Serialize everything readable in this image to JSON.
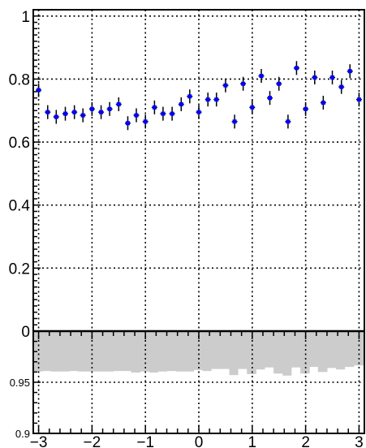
{
  "chart_data": [
    {
      "type": "scatter",
      "title": "",
      "xlabel": "",
      "ylabel": "",
      "xlim": [
        -3.1,
        3.1
      ],
      "ylim": [
        0,
        1.02
      ],
      "grid": true,
      "marker_color": "#0000ff",
      "x_ticks": [
        {
          "value": -3,
          "label": "−3"
        },
        {
          "value": -2,
          "label": "−2"
        },
        {
          "value": -1,
          "label": "−1"
        },
        {
          "value": 0,
          "label": "0"
        },
        {
          "value": 1,
          "label": "1"
        },
        {
          "value": 2,
          "label": "2"
        },
        {
          "value": 3,
          "label": "3"
        }
      ],
      "y_ticks": [
        {
          "value": 0,
          "label": "0"
        },
        {
          "value": 0.2,
          "label": "0.2"
        },
        {
          "value": 0.4,
          "label": "0.4"
        },
        {
          "value": 0.6,
          "label": "0.6"
        },
        {
          "value": 0.8,
          "label": "0.8"
        },
        {
          "value": 1,
          "label": "1"
        }
      ],
      "series": [
        {
          "x": [
            -3.0,
            -2.83,
            -2.67,
            -2.5,
            -2.33,
            -2.17,
            -2.0,
            -1.83,
            -1.67,
            -1.5,
            -1.33,
            -1.17,
            -1.0,
            -0.83,
            -0.67,
            -0.5,
            -0.33,
            -0.17,
            0.0,
            0.17,
            0.33,
            0.5,
            0.67,
            0.83,
            1.0,
            1.17,
            1.33,
            1.5,
            1.67,
            1.83,
            2.0,
            2.17,
            2.33,
            2.5,
            2.67,
            2.83,
            3.0
          ],
          "y": [
            0.765,
            0.695,
            0.68,
            0.69,
            0.695,
            0.685,
            0.705,
            0.695,
            0.705,
            0.72,
            0.66,
            0.685,
            0.665,
            0.71,
            0.69,
            0.69,
            0.72,
            0.745,
            0.695,
            0.735,
            0.735,
            0.78,
            0.665,
            0.785,
            0.71,
            0.81,
            0.74,
            0.785,
            0.665,
            0.835,
            0.705,
            0.805,
            0.725,
            0.805,
            0.775,
            0.825,
            0.735
          ],
          "yerr": [
            0.022,
            0.022,
            0.022,
            0.022,
            0.022,
            0.022,
            0.022,
            0.022,
            0.022,
            0.022,
            0.022,
            0.022,
            0.022,
            0.022,
            0.022,
            0.022,
            0.022,
            0.022,
            0.022,
            0.022,
            0.022,
            0.022,
            0.022,
            0.022,
            0.022,
            0.022,
            0.022,
            0.022,
            0.022,
            0.022,
            0.022,
            0.022,
            0.022,
            0.022,
            0.022,
            0.022,
            0.022
          ]
        }
      ]
    },
    {
      "type": "area",
      "title": "",
      "xlabel": "",
      "ylabel": "",
      "xlim": [
        -3.1,
        3.1
      ],
      "ylim": [
        0.9,
        1.0
      ],
      "grid": true,
      "fill_color": "#cccccc",
      "x_ticks": [
        {
          "value": -3,
          "label": "−3"
        },
        {
          "value": -2,
          "label": "−2"
        },
        {
          "value": -1,
          "label": "−1"
        },
        {
          "value": 0,
          "label": "0"
        },
        {
          "value": 1,
          "label": "1"
        },
        {
          "value": 2,
          "label": "2"
        },
        {
          "value": 3,
          "label": "3"
        }
      ],
      "y_ticks": [
        {
          "value": 0.9,
          "label": "0.9"
        },
        {
          "value": 0.95,
          "label": "0.95"
        },
        {
          "value": 1.0,
          "label": "1"
        }
      ],
      "bin_edges": [
        -3.1,
        -2.93,
        -2.77,
        -2.6,
        -2.43,
        -2.27,
        -2.1,
        -1.93,
        -1.77,
        -1.6,
        -1.43,
        -1.27,
        -1.1,
        -0.93,
        -0.77,
        -0.6,
        -0.43,
        -0.27,
        -0.1,
        0.07,
        0.23,
        0.4,
        0.57,
        0.73,
        0.9,
        1.07,
        1.23,
        1.4,
        1.57,
        1.73,
        1.9,
        2.07,
        2.23,
        2.4,
        2.57,
        2.73,
        2.9,
        3.1
      ],
      "values": [
        0.9605,
        0.961,
        0.9605,
        0.9605,
        0.961,
        0.9605,
        0.9605,
        0.9605,
        0.9605,
        0.961,
        0.961,
        0.9595,
        0.9605,
        0.9595,
        0.9605,
        0.961,
        0.9605,
        0.9605,
        0.962,
        0.961,
        0.963,
        0.963,
        0.957,
        0.963,
        0.958,
        0.9625,
        0.9645,
        0.9585,
        0.9565,
        0.9645,
        0.9585,
        0.965,
        0.96,
        0.964,
        0.9625,
        0.965,
        0.9665
      ]
    }
  ]
}
